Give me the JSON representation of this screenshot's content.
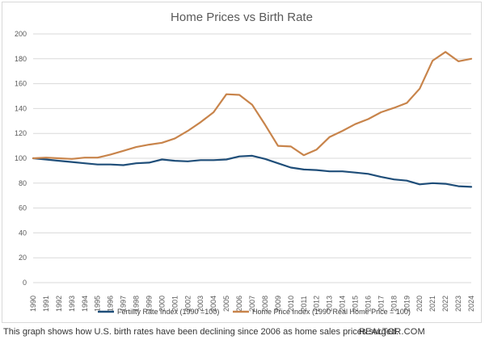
{
  "caption": {
    "text": "This graph shows how U.S. birth rates have been declining since 2006 as home sales prices surged.",
    "source": "REALTOR.COM"
  },
  "colors": {
    "fertility": "#1f4e79",
    "home_price": "#c8844b",
    "gridline": "#d9d9d9"
  },
  "chart_data": {
    "type": "line",
    "title": "Home Prices vs Birth Rate",
    "xlabel": "",
    "ylabel": "",
    "ylim": [
      0,
      200
    ],
    "yticks": [
      0,
      20,
      40,
      60,
      80,
      100,
      120,
      140,
      160,
      180,
      200
    ],
    "grid": true,
    "legend_position": "bottom",
    "x": [
      "1990",
      "1991",
      "1992",
      "1993",
      "1994",
      "1995",
      "1996",
      "1997",
      "1998",
      "1999",
      "2000",
      "2001",
      "2002",
      "2003",
      "2004",
      "2005",
      "2006",
      "2007",
      "2008",
      "2009",
      "2010",
      "2011",
      "2012",
      "2013",
      "2014",
      "2015",
      "2016",
      "2017",
      "2018",
      "2019",
      "2020",
      "2021",
      "2022",
      "2023",
      "2024"
    ],
    "series": [
      {
        "name": "Fertility Rate Index (1990 =100)",
        "values": [
          100,
          99,
          98,
          97,
          96,
          95,
          95,
          94.5,
          96,
          96.5,
          99,
          98,
          97.5,
          98.5,
          98.5,
          99,
          101.5,
          102,
          99.5,
          96,
          92.5,
          91,
          90.5,
          89.5,
          89.5,
          88.5,
          87.5,
          85,
          83,
          82,
          79,
          80,
          79.5,
          77.5,
          77
        ]
      },
      {
        "name": "Home Price Index (1990 Real Home Price = 100)",
        "values": [
          100,
          100.5,
          100,
          99.5,
          100.5,
          100.5,
          103,
          106,
          109,
          111,
          112.5,
          116,
          122,
          129,
          137,
          151.5,
          151,
          143,
          127,
          110,
          109.5,
          102.5,
          107,
          117,
          122,
          127.5,
          131.5,
          137,
          140.5,
          144.5,
          156,
          178.5,
          185.5,
          178,
          180
        ]
      }
    ]
  }
}
